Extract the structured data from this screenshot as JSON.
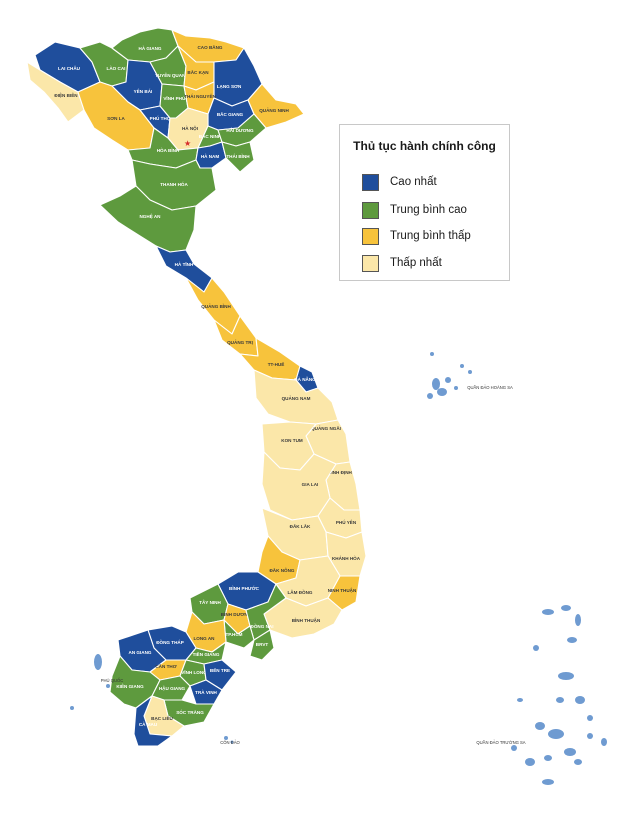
{
  "legend": {
    "title": "Thủ tục hành chính công",
    "items": [
      {
        "label": "Cao nhất",
        "color": "#1f4e9c"
      },
      {
        "label": "Trung bình cao",
        "color": "#5e9a3e"
      },
      {
        "label": "Trung bình thấp",
        "color": "#f7c33c"
      },
      {
        "label": "Thấp nhất",
        "color": "#fbe7a9"
      }
    ]
  },
  "colors": {
    "border": "#ffffff",
    "island": "#6f9bd1"
  },
  "provinces": [
    {
      "name": "LAI CHÂU",
      "tier": 1
    },
    {
      "name": "LÀO CAI",
      "tier": 2
    },
    {
      "name": "HÀ GIANG",
      "tier": 2
    },
    {
      "name": "CAO BẰNG",
      "tier": 3
    },
    {
      "name": "ĐIỆN BIÊN",
      "tier": 4
    },
    {
      "name": "YÊN BÁI",
      "tier": 1
    },
    {
      "name": "TUYÊN QUANG",
      "tier": 2
    },
    {
      "name": "BẮC KẠN",
      "tier": 3
    },
    {
      "name": "LẠNG SƠN",
      "tier": 1
    },
    {
      "name": "SƠN LA",
      "tier": 3
    },
    {
      "name": "PHÚ THỌ",
      "tier": 1
    },
    {
      "name": "VĨNH PHÚC",
      "tier": 2
    },
    {
      "name": "THÁI NGUYÊN",
      "tier": 3
    },
    {
      "name": "BẮC GIANG",
      "tier": 1
    },
    {
      "name": "QUẢNG NINH",
      "tier": 3
    },
    {
      "name": "HÀ NỘI",
      "tier": 4
    },
    {
      "name": "BẮC NINH",
      "tier": 2
    },
    {
      "name": "HẢI DƯƠNG",
      "tier": 2
    },
    {
      "name": "HÒA BÌNH",
      "tier": 2
    },
    {
      "name": "HÀ NAM",
      "tier": 1
    },
    {
      "name": "THÁI BÌNH",
      "tier": 2
    },
    {
      "name": "THANH HÓA",
      "tier": 2
    },
    {
      "name": "NGHỆ AN",
      "tier": 2
    },
    {
      "name": "HÀ TĨNH",
      "tier": 1
    },
    {
      "name": "QUẢNG BÌNH",
      "tier": 3
    },
    {
      "name": "QUẢNG TRỊ",
      "tier": 3
    },
    {
      "name": "TT-HUẾ",
      "tier": 3
    },
    {
      "name": "ĐÀ NẴNG",
      "tier": 1
    },
    {
      "name": "QUẢNG NAM",
      "tier": 4
    },
    {
      "name": "QUẢNG NGÃI",
      "tier": 4
    },
    {
      "name": "KON TUM",
      "tier": 4
    },
    {
      "name": "BÌNH ĐỊNH",
      "tier": 4
    },
    {
      "name": "GIA LAI",
      "tier": 4
    },
    {
      "name": "PHÚ YÊN",
      "tier": 4
    },
    {
      "name": "ĐẮK LẮK",
      "tier": 4
    },
    {
      "name": "KHÁNH HÒA",
      "tier": 4
    },
    {
      "name": "ĐẮK NÔNG",
      "tier": 3
    },
    {
      "name": "LÂM ĐỒNG",
      "tier": 4
    },
    {
      "name": "NINH THUẬN",
      "tier": 3
    },
    {
      "name": "BÌNH THUẬN",
      "tier": 4
    },
    {
      "name": "BÌNH PHƯỚC",
      "tier": 1
    },
    {
      "name": "TÂY NINH",
      "tier": 2
    },
    {
      "name": "BÌNH DƯƠNG",
      "tier": 3
    },
    {
      "name": "ĐỒNG NAI",
      "tier": 2
    },
    {
      "name": "TP.HCM",
      "tier": 2
    },
    {
      "name": "BRVT",
      "tier": 2
    },
    {
      "name": "LONG AN",
      "tier": 3
    },
    {
      "name": "ĐỒNG THÁP",
      "tier": 1
    },
    {
      "name": "AN GIANG",
      "tier": 1
    },
    {
      "name": "TIỀN GIANG",
      "tier": 2
    },
    {
      "name": "CẦN THƠ",
      "tier": 3
    },
    {
      "name": "VĨNH LONG",
      "tier": 2
    },
    {
      "name": "BẾN TRE",
      "tier": 1
    },
    {
      "name": "KIÊN GIANG",
      "tier": 2
    },
    {
      "name": "HẬU GIANG",
      "tier": 2
    },
    {
      "name": "TRÀ VINH",
      "tier": 1
    },
    {
      "name": "SÓC TRĂNG",
      "tier": 2
    },
    {
      "name": "BẠC LIÊU",
      "tier": 4
    },
    {
      "name": "CÀ MAU",
      "tier": 1
    }
  ],
  "islands": [
    {
      "name": "QUẦN ĐẢO HOÀNG SA"
    },
    {
      "name": "QUẦN ĐẢO TRƯỜNG SA"
    },
    {
      "name": "PHÚ QUỐC"
    },
    {
      "name": "CÔN ĐẢO"
    }
  ]
}
